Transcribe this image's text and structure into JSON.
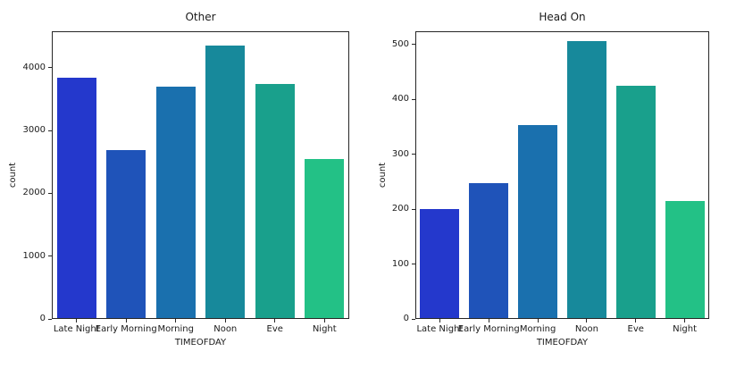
{
  "figure": {
    "background": "#ffffff",
    "axis_color": "#262626",
    "text_color": "#1a1a1a",
    "palette": [
      "#2438cc",
      "#1f53b9",
      "#1a70ae",
      "#17899b",
      "#19a08c",
      "#23c186"
    ]
  },
  "chart_data": [
    {
      "type": "bar",
      "title": "Other",
      "xlabel": "TIMEOFDAY",
      "ylabel": "count",
      "categories": [
        "Late Night",
        "Early Morning",
        "Morning",
        "Noon",
        "Eve",
        "Night"
      ],
      "values": [
        3830,
        2680,
        3690,
        4340,
        3730,
        2530
      ],
      "yticks": [
        0,
        1000,
        2000,
        3000,
        4000
      ],
      "ylim": [
        0,
        4580
      ],
      "grid": false,
      "legend": "none"
    },
    {
      "type": "bar",
      "title": "Head On",
      "xlabel": "TIMEOFDAY",
      "ylabel": "count",
      "categories": [
        "Late Night",
        "Early Morning",
        "Morning",
        "Noon",
        "Eve",
        "Night"
      ],
      "values": [
        199,
        246,
        352,
        505,
        423,
        214
      ],
      "yticks": [
        0,
        100,
        200,
        300,
        400,
        500
      ],
      "ylim": [
        0,
        524
      ],
      "grid": false,
      "legend": "none"
    }
  ]
}
